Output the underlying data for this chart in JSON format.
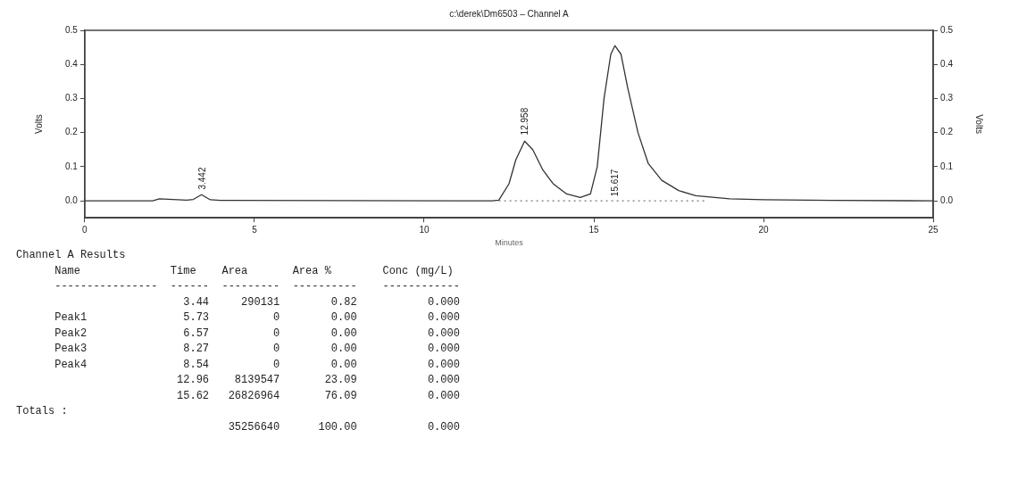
{
  "chart_data": {
    "type": "line",
    "title": "c:\\derek\\Dm6503 – Channel A",
    "xlabel": "Minutes",
    "ylabel": "Volts",
    "y2label": "Volts",
    "xlim": [
      0,
      25
    ],
    "xticks": [
      0,
      5,
      10,
      15,
      20,
      25
    ],
    "ylim": [
      -0.05,
      0.5
    ],
    "yticks": [
      {
        "value": 0,
        "label": "0.0"
      },
      {
        "value": 0.1,
        "label": "0.1"
      },
      {
        "value": 0.2,
        "label": "0.2"
      },
      {
        "value": 0.3,
        "label": "0.3"
      },
      {
        "value": 0.4,
        "label": "0.4"
      },
      {
        "value": 0.5,
        "label": "0.5"
      }
    ],
    "y2lim": [
      -0.05,
      0.5
    ],
    "y2ticks": [
      {
        "value": 0,
        "label": "0.0"
      },
      {
        "value": 0.1,
        "label": "0.1"
      },
      {
        "value": 0.2,
        "label": "0.2"
      },
      {
        "value": 0.3,
        "label": "0.3"
      },
      {
        "value": 0.4,
        "label": "0.4"
      },
      {
        "value": 0.5,
        "label": "0.5"
      }
    ],
    "grid": false,
    "marker": "none",
    "series": [
      {
        "type": "line",
        "color": "#333333",
        "line_style": "solid",
        "x": [
          0,
          2.0,
          2.2,
          3.0,
          3.2,
          3.44,
          3.7,
          4.0,
          12.0,
          12.2,
          12.5,
          12.7,
          12.96,
          13.2,
          13.5,
          13.8,
          14.2,
          14.6,
          14.9,
          15.1,
          15.3,
          15.5,
          15.62,
          15.8,
          16.0,
          16.3,
          16.6,
          17.0,
          17.5,
          18.0,
          19.0,
          20.0,
          22.0,
          25.0
        ],
        "values": [
          0,
          0,
          0.006,
          0.002,
          0.004,
          0.018,
          0.003,
          0.001,
          0,
          0.002,
          0.05,
          0.12,
          0.175,
          0.15,
          0.09,
          0.05,
          0.02,
          0.01,
          0.02,
          0.1,
          0.3,
          0.43,
          0.455,
          0.43,
          0.33,
          0.2,
          0.11,
          0.06,
          0.03,
          0.015,
          0.006,
          0.003,
          0.001,
          0
        ]
      },
      {
        "type": "line",
        "color": "#777777",
        "line_style": "dotted",
        "x": [
          12.2,
          18.3
        ],
        "values": [
          0,
          0
        ]
      }
    ],
    "annotations": [
      {
        "text": "3.442",
        "x": 3.442,
        "y": 0.025
      },
      {
        "text": "12.958",
        "x": 12.958,
        "y": 0.185
      },
      {
        "text": "15.617",
        "x": 15.617,
        "y": 0.005
      },
      "Channel A Results",
      "      Name              Time    Area       Area %        Conc (mg/L)",
      "      ----------------  ------  ---------  ----------    ------------",
      "                          3.44     290131        0.82           0.000",
      "      Peak1               5.73          0        0.00           0.000",
      "      Peak2               6.57          0        0.00           0.000",
      "      Peak3               8.27          0        0.00           0.000",
      "      Peak4               8.54          0        0.00           0.000",
      "                         12.96    8139547       23.09           0.000",
      "                         15.62   26826964       76.09           0.000",
      "Totals :",
      "                                 35256640      100.00           0.000"
    ]
  }
}
